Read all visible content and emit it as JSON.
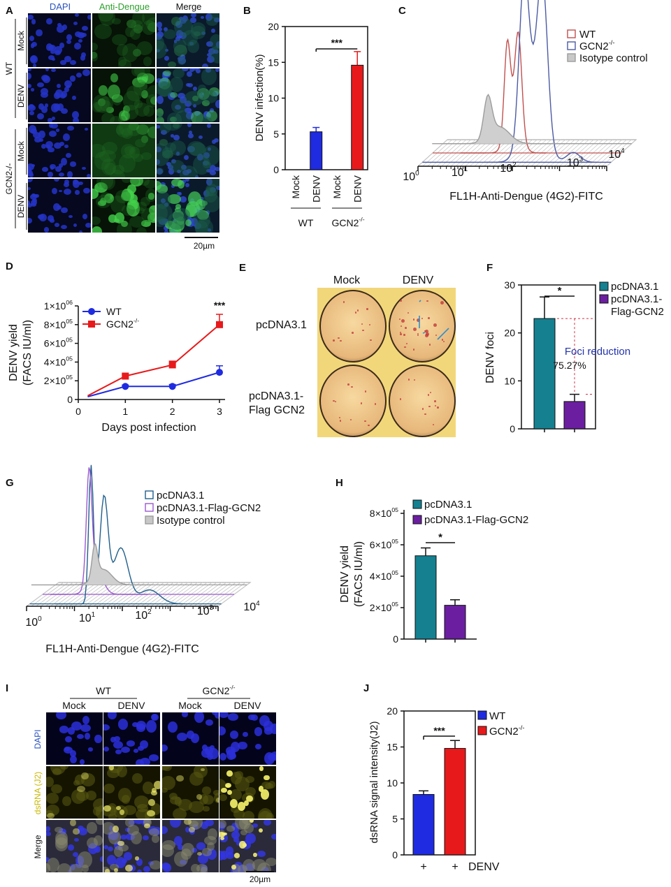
{
  "panels": {
    "A": {
      "letter": "A",
      "columns": [
        "DAPI",
        "Anti-Dengue",
        "Merge"
      ],
      "groups": [
        "WT",
        "GCN2-/-"
      ],
      "rows": [
        "Mock",
        "DENV",
        "Mock",
        "DENV"
      ],
      "scale": "20µm",
      "colors": {
        "dapi": "#2030b8",
        "dapi_text": "#2a52be",
        "dengue_text": "#2ca02c"
      }
    },
    "B": {
      "letter": "B",
      "group_labels": [
        "WT",
        "GCN2-/-"
      ],
      "significance": "***"
    },
    "C": {
      "letter": "C",
      "legend": [
        "WT",
        "GCN2-/-",
        "Isotype control"
      ],
      "xlabel": "FL1H-Anti-Dengue (4G2)-FITC",
      "ticks": [
        "10",
        "10",
        "10",
        "10",
        "10"
      ],
      "exponents": [
        "0",
        "1",
        "2",
        "3",
        "4"
      ]
    },
    "D": {
      "letter": "D",
      "significance": "***"
    },
    "E": {
      "letter": "E",
      "columns": [
        "Mock",
        "DENV"
      ],
      "rows": [
        "pcDNA3.1",
        "pcDNA3.1-",
        "Flag GCN2"
      ]
    },
    "F": {
      "letter": "F",
      "legend": [
        "pcDNA3.1",
        "pcDNA3.1-",
        "Flag-GCN2"
      ],
      "annotation": "Foci reduction",
      "percent": "75.27%",
      "significance": "*"
    },
    "G": {
      "letter": "G",
      "legend": [
        "pcDNA3.1",
        "pcDNA3.1-Flag-GCN2",
        "Isotype control"
      ],
      "xlabel": "FL1H-Anti-Dengue (4G2)-FITC",
      "ticks": [
        "10",
        "10",
        "10",
        "10",
        "10"
      ],
      "exponents": [
        "0",
        "1",
        "2",
        "3",
        "4"
      ]
    },
    "H": {
      "letter": "H",
      "legend": [
        "pcDNA3.1",
        "pcDNA3.1-Flag-GCN2"
      ],
      "significance": "*"
    },
    "I": {
      "letter": "I",
      "groups": [
        "WT",
        "GCN2-/-"
      ],
      "columns": [
        "Mock",
        "DENV",
        "Mock",
        "DENV"
      ],
      "rows": [
        "DAPI",
        "dsRNA (J2)",
        "Merge"
      ],
      "scale": "20µm"
    },
    "J": {
      "letter": "J",
      "legend": [
        "WT",
        "GCN2-/-"
      ],
      "xlabel_suffix": "DENV",
      "significance": "***"
    }
  },
  "chart_data": [
    {
      "id": "B",
      "type": "bar",
      "categories": [
        "Mock",
        "DENV",
        "Mock",
        "DENV"
      ],
      "values": [
        0,
        5.3,
        0,
        14.6
      ],
      "errors": [
        0,
        0.6,
        0,
        1.9
      ],
      "colors": [
        "#1f2be0",
        "#1f2be0",
        "#e8191b",
        "#e8191b"
      ],
      "ylabel": "DENV infection(%)",
      "ylim": [
        0,
        20
      ],
      "yticks": [
        0,
        5,
        10,
        15,
        20
      ]
    },
    {
      "id": "C",
      "type": "area",
      "title": "",
      "series": [
        {
          "name": "WT",
          "color": "#c0504d",
          "peaks_log10": [
            1.6,
            1.85
          ]
        },
        {
          "name": "GCN2-/-",
          "color": "#4b5aa3",
          "peaks_log10": [
            2.1,
            2.4
          ]
        },
        {
          "name": "Isotype control",
          "color": "#9c9c9c",
          "peaks_log10": [
            1.1
          ]
        }
      ],
      "xlabel": "FL1H-Anti-Dengue (4G2)-FITC",
      "xscale": "log",
      "xlim_log10": [
        0,
        4
      ]
    },
    {
      "id": "D",
      "type": "line",
      "x": [
        0.2,
        1,
        2,
        3
      ],
      "series": [
        {
          "name": "WT",
          "color": "#1f2be0",
          "marker": "circle",
          "values": [
            30000,
            140000,
            140000,
            290000
          ],
          "errors": [
            0,
            15000,
            20000,
            70000
          ]
        },
        {
          "name": "GCN2-/-",
          "color": "#e8191b",
          "marker": "square",
          "values": [
            40000,
            250000,
            370000,
            800000
          ],
          "errors": [
            0,
            20000,
            40000,
            110000
          ]
        }
      ],
      "xlabel": "Days post infection",
      "ylabel": "DENV yield",
      "ylabel2": "(FACS IU/ml)",
      "xticks": [
        0,
        1,
        2,
        3
      ],
      "yticks": [
        0,
        200000,
        400000,
        600000,
        800000,
        1000000
      ],
      "ytick_labels": [
        "0",
        "2×10",
        "4×10",
        "6×10",
        "8×10",
        "1×10"
      ],
      "ytick_exponents": [
        "",
        "05",
        "05",
        "05",
        "05",
        "06"
      ],
      "ylim": [
        0,
        1000000
      ]
    },
    {
      "id": "F",
      "type": "bar",
      "categories": [
        "pcDNA3.1",
        "pcDNA3.1-Flag-GCN2"
      ],
      "values": [
        23,
        5.7
      ],
      "errors": [
        4.5,
        1.5
      ],
      "colors": [
        "#148090",
        "#6b1fa0"
      ],
      "ylabel": "DENV foci",
      "ylim": [
        0,
        30
      ],
      "yticks": [
        0,
        10,
        20,
        30
      ]
    },
    {
      "id": "G",
      "type": "area",
      "series": [
        {
          "name": "pcDNA3.1",
          "color": "#1f5f8b",
          "peaks_log10": [
            1.2,
            1.5
          ]
        },
        {
          "name": "pcDNA3.1-Flag-GCN2",
          "color": "#9b59d0",
          "peaks_log10": [
            0.95
          ]
        },
        {
          "name": "Isotype control",
          "color": "#9c9c9c",
          "peaks_log10": [
            0.8
          ]
        }
      ],
      "xlabel": "FL1H-Anti-Dengue (4G2)-FITC",
      "xscale": "log",
      "xlim_log10": [
        0,
        4
      ]
    },
    {
      "id": "H",
      "type": "bar",
      "categories": [
        "pcDNA3.1",
        "pcDNA3.1-Flag-GCN2"
      ],
      "values": [
        530000,
        215000
      ],
      "errors": [
        50000,
        35000
      ],
      "colors": [
        "#148090",
        "#6b1fa0"
      ],
      "ylabel": "DENV yield",
      "ylabel2": "(FACS IU/ml)",
      "ylim": [
        0,
        800000
      ],
      "yticks": [
        0,
        200000,
        400000,
        600000,
        800000
      ],
      "ytick_labels": [
        "0",
        "2×10",
        "4×10",
        "6×10",
        "8×10"
      ],
      "ytick_exponents": [
        "",
        "05",
        "05",
        "05",
        "05"
      ]
    },
    {
      "id": "J",
      "type": "bar",
      "categories": [
        "+",
        "+"
      ],
      "values": [
        8.4,
        14.8
      ],
      "errors": [
        0.5,
        1.1
      ],
      "colors": [
        "#1f2be0",
        "#e8191b"
      ],
      "ylabel": "dsRNA signal intensity(J2)",
      "ylim": [
        0,
        20
      ],
      "yticks": [
        0,
        5,
        10,
        15,
        20
      ]
    }
  ]
}
